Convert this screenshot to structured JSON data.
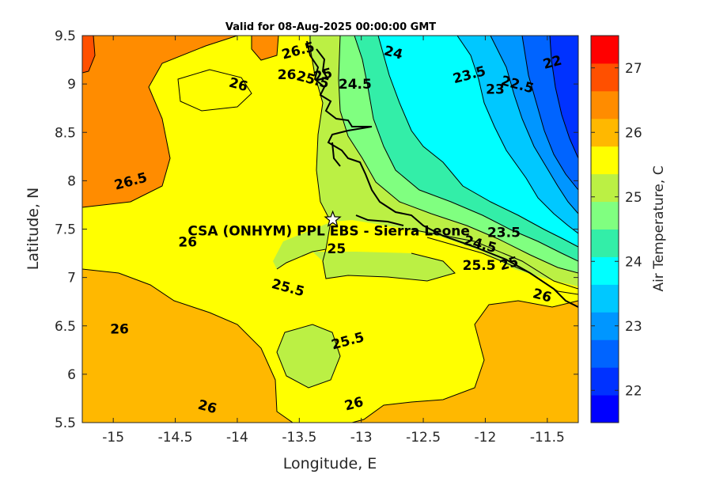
{
  "title": "Valid for 08-Aug-2025 00:00:00 GMT",
  "axes": {
    "xlabel": "Longitude, E",
    "ylabel": "Latitude, N",
    "xlim": [
      -15.25,
      -11.25
    ],
    "ylim": [
      5.5,
      9.5
    ],
    "xticks": [
      "-15",
      "-14.5",
      "-14",
      "-13.5",
      "-13",
      "-12.5",
      "-12",
      "-11.5"
    ],
    "yticks": [
      "5.5",
      "6",
      "6.5",
      "7",
      "7.5",
      "8",
      "8.5",
      "9",
      "9.5"
    ]
  },
  "colorbar": {
    "label": "Air Temperature, C",
    "range": [
      21.5,
      27.5
    ],
    "step": 0.5,
    "ticks": [
      "22",
      "23",
      "24",
      "25",
      "26",
      "27"
    ],
    "colors": [
      "#0000ff",
      "#0032ff",
      "#0064ff",
      "#0096ff",
      "#00c8ff",
      "#00ffff",
      "#33eea8",
      "#80ff80",
      "#bbf044",
      "#ffff00",
      "#ffb800",
      "#ff8c00",
      "#ff5000",
      "#ff0000"
    ]
  },
  "station": {
    "label": "CSA (ONHYM) PPL EBS  - Sierra Leone",
    "lon": -13.23,
    "lat": 7.6,
    "marker": "star-icon"
  },
  "contour_labels": [
    {
      "text": "26.5",
      "lon": -13.5,
      "lat": 9.3
    },
    {
      "text": "26",
      "lon": -13.6,
      "lat": 9.05
    },
    {
      "text": "26",
      "lon": -14.0,
      "lat": 8.95
    },
    {
      "text": "26.5",
      "lon": -14.85,
      "lat": 7.95
    },
    {
      "text": "26",
      "lon": -14.4,
      "lat": 7.32
    },
    {
      "text": "25.5",
      "lon": -13.4,
      "lat": 9.0
    },
    {
      "text": "25",
      "lon": -13.3,
      "lat": 9.05
    },
    {
      "text": "24.5",
      "lon": -13.05,
      "lat": 8.95
    },
    {
      "text": "24",
      "lon": -12.75,
      "lat": 9.28
    },
    {
      "text": "23.5",
      "lon": -12.12,
      "lat": 9.05
    },
    {
      "text": "23",
      "lon": -11.92,
      "lat": 8.9
    },
    {
      "text": "22.5",
      "lon": -11.75,
      "lat": 8.95
    },
    {
      "text": "22",
      "lon": -11.45,
      "lat": 9.18
    },
    {
      "text": "25",
      "lon": -13.2,
      "lat": 7.25
    },
    {
      "text": "25.5",
      "lon": -13.6,
      "lat": 6.85
    },
    {
      "text": "25.5",
      "lon": -13.1,
      "lat": 6.3
    },
    {
      "text": "26",
      "lon": -14.95,
      "lat": 6.42
    },
    {
      "text": "26",
      "lon": -14.25,
      "lat": 5.62
    },
    {
      "text": "26",
      "lon": -13.05,
      "lat": 5.65
    },
    {
      "text": "23.5",
      "lon": -11.85,
      "lat": 7.42
    },
    {
      "text": "24.5",
      "lon": -12.05,
      "lat": 7.3
    },
    {
      "text": "25",
      "lon": -11.8,
      "lat": 7.1
    },
    {
      "text": "25.5",
      "lon": -12.05,
      "lat": 7.08
    },
    {
      "text": "26",
      "lon": -11.55,
      "lat": 6.77
    }
  ]
}
